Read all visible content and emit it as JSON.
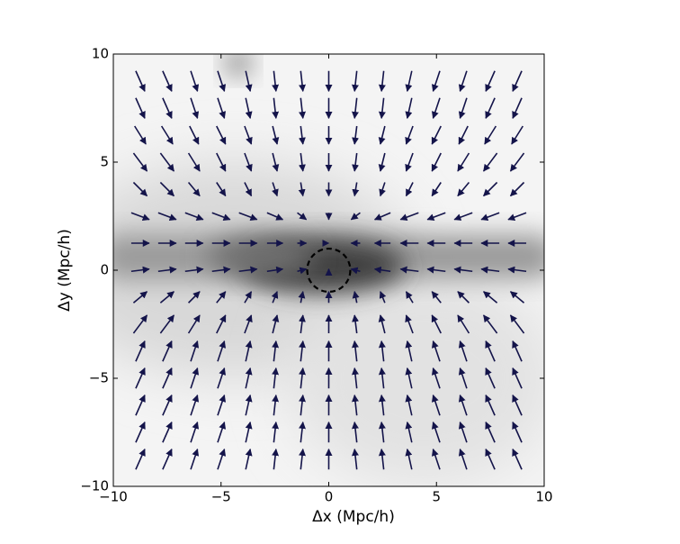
{
  "chart_data": {
    "type": "quiver",
    "xlabel": "Δx  (Mpc/h)",
    "ylabel": "Δy  (Mpc/h)",
    "xlim": [
      -10,
      10
    ],
    "ylim": [
      -10,
      10
    ],
    "xticks": [
      {
        "value": -10,
        "label": "−10"
      },
      {
        "value": -5,
        "label": "−5"
      },
      0,
      5,
      10
    ],
    "yticks": [
      {
        "value": -10,
        "label": "−10"
      },
      {
        "value": -5,
        "label": "−5"
      },
      0,
      5,
      10
    ],
    "color": "#14144a",
    "circle": {
      "center": [
        0,
        0
      ],
      "radius": 1
    },
    "x": [
      -8.75,
      -7.5,
      -6.25,
      -5,
      -3.75,
      -2.5,
      -1.25,
      0,
      1.25,
      2.5,
      3.75,
      5,
      6.25,
      7.5,
      8.75
    ],
    "y": [
      8.75,
      7.5,
      6.25,
      5,
      3.75,
      2.5,
      1.25,
      0,
      -1.25,
      -2.5,
      -3.75,
      -5,
      -6.25,
      -7.5,
      -8.75
    ],
    "u": [
      [
        0.4,
        0.4,
        0.3,
        0.3,
        0.2,
        0.1,
        0.1,
        0,
        -0.1,
        -0.1,
        -0.2,
        -0.3,
        -0.3,
        -0.4,
        -0.4
      ],
      [
        0.4,
        0.4,
        0.3,
        0.3,
        0.2,
        0.1,
        0.1,
        0,
        -0.1,
        -0.1,
        -0.2,
        -0.3,
        -0.3,
        -0.4,
        -0.4
      ],
      [
        0.5,
        0.5,
        0.4,
        0.4,
        0.3,
        0.2,
        0.1,
        0,
        -0.1,
        -0.2,
        -0.3,
        -0.4,
        -0.4,
        -0.5,
        -0.5
      ],
      [
        0.6,
        0.6,
        0.5,
        0.4,
        0.3,
        0.2,
        0.1,
        0,
        -0.1,
        -0.2,
        -0.3,
        -0.4,
        -0.5,
        -0.6,
        -0.6
      ],
      [
        0.6,
        0.6,
        0.5,
        0.4,
        0.3,
        0.2,
        0.1,
        0,
        -0.1,
        -0.2,
        -0.3,
        -0.4,
        -0.5,
        -0.6,
        -0.6
      ],
      [
        0.8,
        0.8,
        0.8,
        0.8,
        0.8,
        0.7,
        0.4,
        0,
        -0.4,
        -0.7,
        -0.8,
        -0.8,
        -0.8,
        -0.8,
        -0.8
      ],
      [
        0.8,
        0.8,
        0.8,
        0.8,
        0.8,
        0.7,
        0.4,
        0,
        -0.4,
        -0.7,
        -0.8,
        -0.8,
        -0.8,
        -0.8,
        -0.8
      ],
      [
        0.8,
        0.8,
        0.8,
        0.8,
        0.8,
        0.7,
        0.4,
        0,
        -0.4,
        -0.7,
        -0.8,
        -0.8,
        -0.8,
        -0.8,
        -0.8
      ],
      [
        0.6,
        0.6,
        0.5,
        0.4,
        0.3,
        0.2,
        0.1,
        0,
        -0.1,
        -0.2,
        -0.3,
        -0.4,
        -0.5,
        -0.6,
        -0.6
      ],
      [
        0.6,
        0.6,
        0.5,
        0.4,
        0.3,
        0.2,
        0.1,
        0,
        -0.1,
        -0.2,
        -0.3,
        -0.4,
        -0.5,
        -0.6,
        -0.6
      ],
      [
        0.4,
        0.4,
        0.3,
        0.3,
        0.2,
        0.1,
        0.1,
        0,
        -0.1,
        -0.1,
        -0.2,
        -0.3,
        -0.3,
        -0.4,
        -0.4
      ],
      [
        0.4,
        0.4,
        0.3,
        0.3,
        0.2,
        0.1,
        0.1,
        0,
        -0.1,
        -0.1,
        -0.2,
        -0.3,
        -0.3,
        -0.4,
        -0.4
      ],
      [
        0.4,
        0.4,
        0.3,
        0.3,
        0.2,
        0.1,
        0.1,
        0,
        -0.1,
        -0.1,
        -0.2,
        -0.3,
        -0.3,
        -0.4,
        -0.4
      ],
      [
        0.4,
        0.4,
        0.3,
        0.3,
        0.2,
        0.1,
        0.1,
        0,
        -0.1,
        -0.1,
        -0.2,
        -0.3,
        -0.3,
        -0.4,
        -0.4
      ],
      [
        0.4,
        0.4,
        0.3,
        0.3,
        0.2,
        0.1,
        0.1,
        0,
        -0.1,
        -0.1,
        -0.2,
        -0.3,
        -0.3,
        -0.4,
        -0.4
      ]
    ],
    "v": [
      [
        -0.9,
        -0.9,
        -0.9,
        -0.9,
        -0.9,
        -0.9,
        -0.9,
        -0.9,
        -0.9,
        -0.9,
        -0.9,
        -0.9,
        -0.9,
        -0.9,
        -0.9
      ],
      [
        -0.9,
        -0.9,
        -0.9,
        -0.9,
        -0.9,
        -0.9,
        -0.9,
        -0.9,
        -0.9,
        -0.9,
        -0.9,
        -0.9,
        -0.9,
        -0.9,
        -0.9
      ],
      [
        -0.8,
        -0.8,
        -0.8,
        -0.8,
        -0.8,
        -0.8,
        -0.8,
        -0.8,
        -0.8,
        -0.8,
        -0.8,
        -0.8,
        -0.8,
        -0.8,
        -0.8
      ],
      [
        -0.8,
        -0.8,
        -0.8,
        -0.8,
        -0.8,
        -0.8,
        -0.8,
        -0.8,
        -0.8,
        -0.8,
        -0.8,
        -0.8,
        -0.8,
        -0.8,
        -0.8
      ],
      [
        -0.6,
        -0.6,
        -0.6,
        -0.6,
        -0.6,
        -0.6,
        -0.6,
        -0.6,
        -0.6,
        -0.6,
        -0.6,
        -0.6,
        -0.6,
        -0.6,
        -0.6
      ],
      [
        -0.3,
        -0.3,
        -0.3,
        -0.3,
        -0.3,
        -0.3,
        -0.3,
        -0.3,
        -0.3,
        -0.3,
        -0.3,
        -0.3,
        -0.3,
        -0.3,
        -0.3
      ],
      [
        0,
        0,
        0,
        0,
        0,
        0,
        0,
        0,
        0,
        0,
        0,
        0,
        0,
        0,
        0
      ],
      [
        0.1,
        0.1,
        0.1,
        0.1,
        0.1,
        0.1,
        0.1,
        0.1,
        0.1,
        0.1,
        0.1,
        0.1,
        0.1,
        0.1,
        0.1
      ],
      [
        0.5,
        0.5,
        0.5,
        0.5,
        0.5,
        0.5,
        0.5,
        0.5,
        0.5,
        0.5,
        0.5,
        0.5,
        0.5,
        0.5,
        0.5
      ],
      [
        0.8,
        0.8,
        0.8,
        0.8,
        0.8,
        0.8,
        0.8,
        0.8,
        0.8,
        0.8,
        0.8,
        0.8,
        0.8,
        0.8,
        0.8
      ],
      [
        0.9,
        0.9,
        0.9,
        0.9,
        0.9,
        0.9,
        0.9,
        0.9,
        0.9,
        0.9,
        0.9,
        0.9,
        0.9,
        0.9,
        0.9
      ],
      [
        0.9,
        0.9,
        0.9,
        0.9,
        0.9,
        0.9,
        0.9,
        0.9,
        0.9,
        0.9,
        0.9,
        0.9,
        0.9,
        0.9,
        0.9
      ],
      [
        0.9,
        0.9,
        0.9,
        0.9,
        0.9,
        0.9,
        0.9,
        0.9,
        0.9,
        0.9,
        0.9,
        0.9,
        0.9,
        0.9,
        0.9
      ],
      [
        0.9,
        0.9,
        0.9,
        0.9,
        0.9,
        0.9,
        0.9,
        0.9,
        0.9,
        0.9,
        0.9,
        0.9,
        0.9,
        0.9,
        0.9
      ],
      [
        0.9,
        0.9,
        0.9,
        0.9,
        0.9,
        0.9,
        0.9,
        0.9,
        0.9,
        0.9,
        0.9,
        0.9,
        0.9,
        0.9,
        0.9
      ]
    ]
  }
}
